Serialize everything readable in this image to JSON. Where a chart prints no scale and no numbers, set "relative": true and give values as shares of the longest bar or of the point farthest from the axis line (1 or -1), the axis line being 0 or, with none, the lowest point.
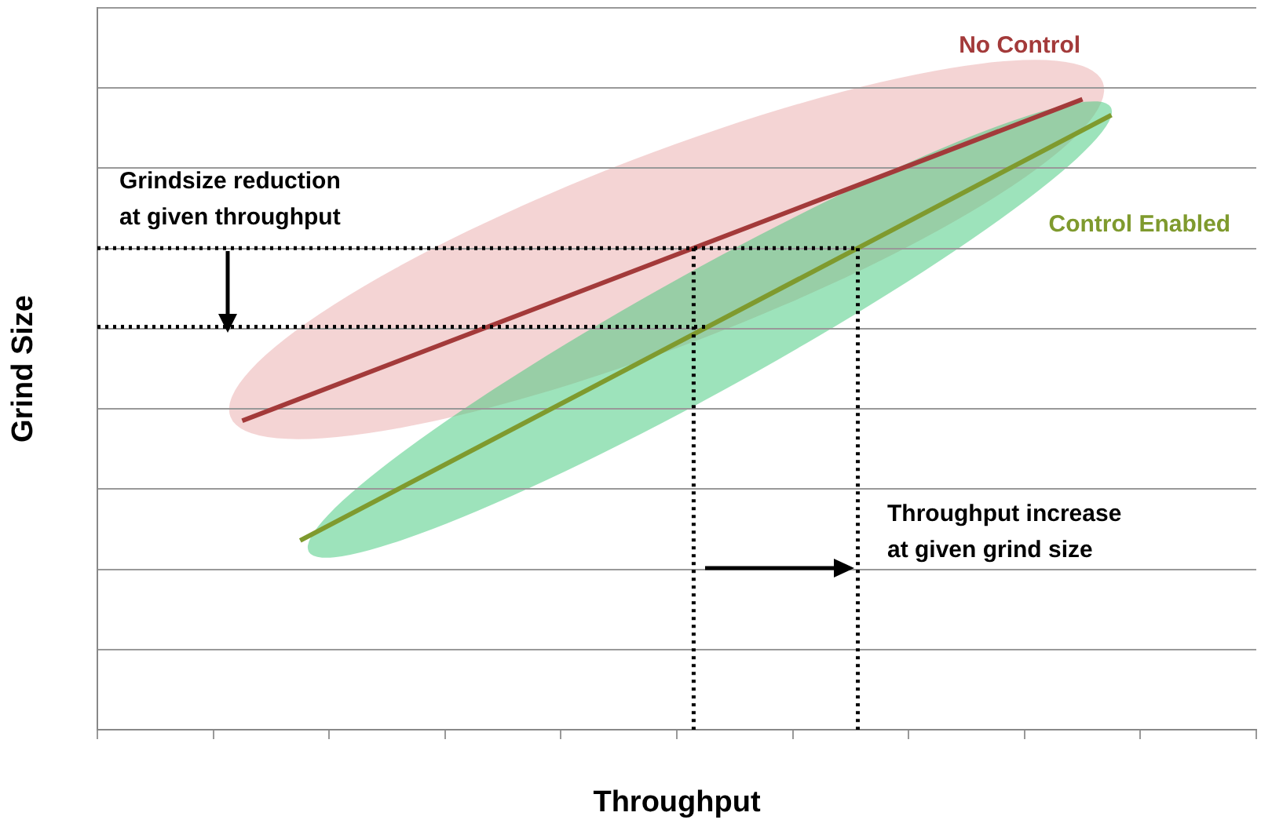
{
  "chart_data": {
    "type": "line",
    "relative": true,
    "xlabel": "Throughput",
    "ylabel": "Grind Size",
    "grid": "y",
    "legend": false,
    "marker": "none",
    "line_style": "solid",
    "categories": [
      null,
      null,
      null,
      null,
      null,
      null,
      null,
      null,
      null,
      null,
      null,
      null,
      null,
      null,
      null,
      null,
      null,
      null,
      null,
      null,
      null,
      null,
      null,
      null,
      null,
      null,
      null,
      null,
      null,
      null,
      null,
      null,
      null,
      null,
      null,
      null,
      null,
      null,
      null,
      null,
      null
    ],
    "series": [
      {
        "name": "No Control",
        "color": "#a33a3a",
        "values": [
          null,
          null,
          null,
          null,
          null,
          0.49,
          null,
          null,
          null,
          null,
          null,
          null,
          null,
          null,
          null,
          null,
          null,
          null,
          null,
          null,
          null,
          null,
          null,
          null,
          null,
          null,
          null,
          null,
          null,
          null,
          null,
          null,
          null,
          null,
          1,
          null,
          null,
          null,
          null,
          null,
          null
        ]
      },
      {
        "name": "Control Enabled",
        "color": "#7f9a2e",
        "values": [
          null,
          null,
          null,
          null,
          null,
          null,
          null,
          0.3,
          null,
          null,
          null,
          null,
          null,
          null,
          null,
          null,
          null,
          null,
          null,
          null,
          null,
          null,
          null,
          null,
          null,
          null,
          null,
          null,
          null,
          null,
          null,
          null,
          null,
          null,
          null,
          0.975,
          null,
          null,
          null,
          null,
          null
        ]
      }
    ],
    "ref_lines": [
      {
        "axis": "y",
        "value": 0.764,
        "color": "#000000",
        "line_style": "dotted"
      },
      {
        "axis": "y",
        "value": 0.639,
        "color": "#000000",
        "line_style": "dotted"
      }
    ],
    "annotations": [
      "Grindsize reduction\nat given throughput",
      "Throughput increase\nat given grind size"
    ]
  }
}
